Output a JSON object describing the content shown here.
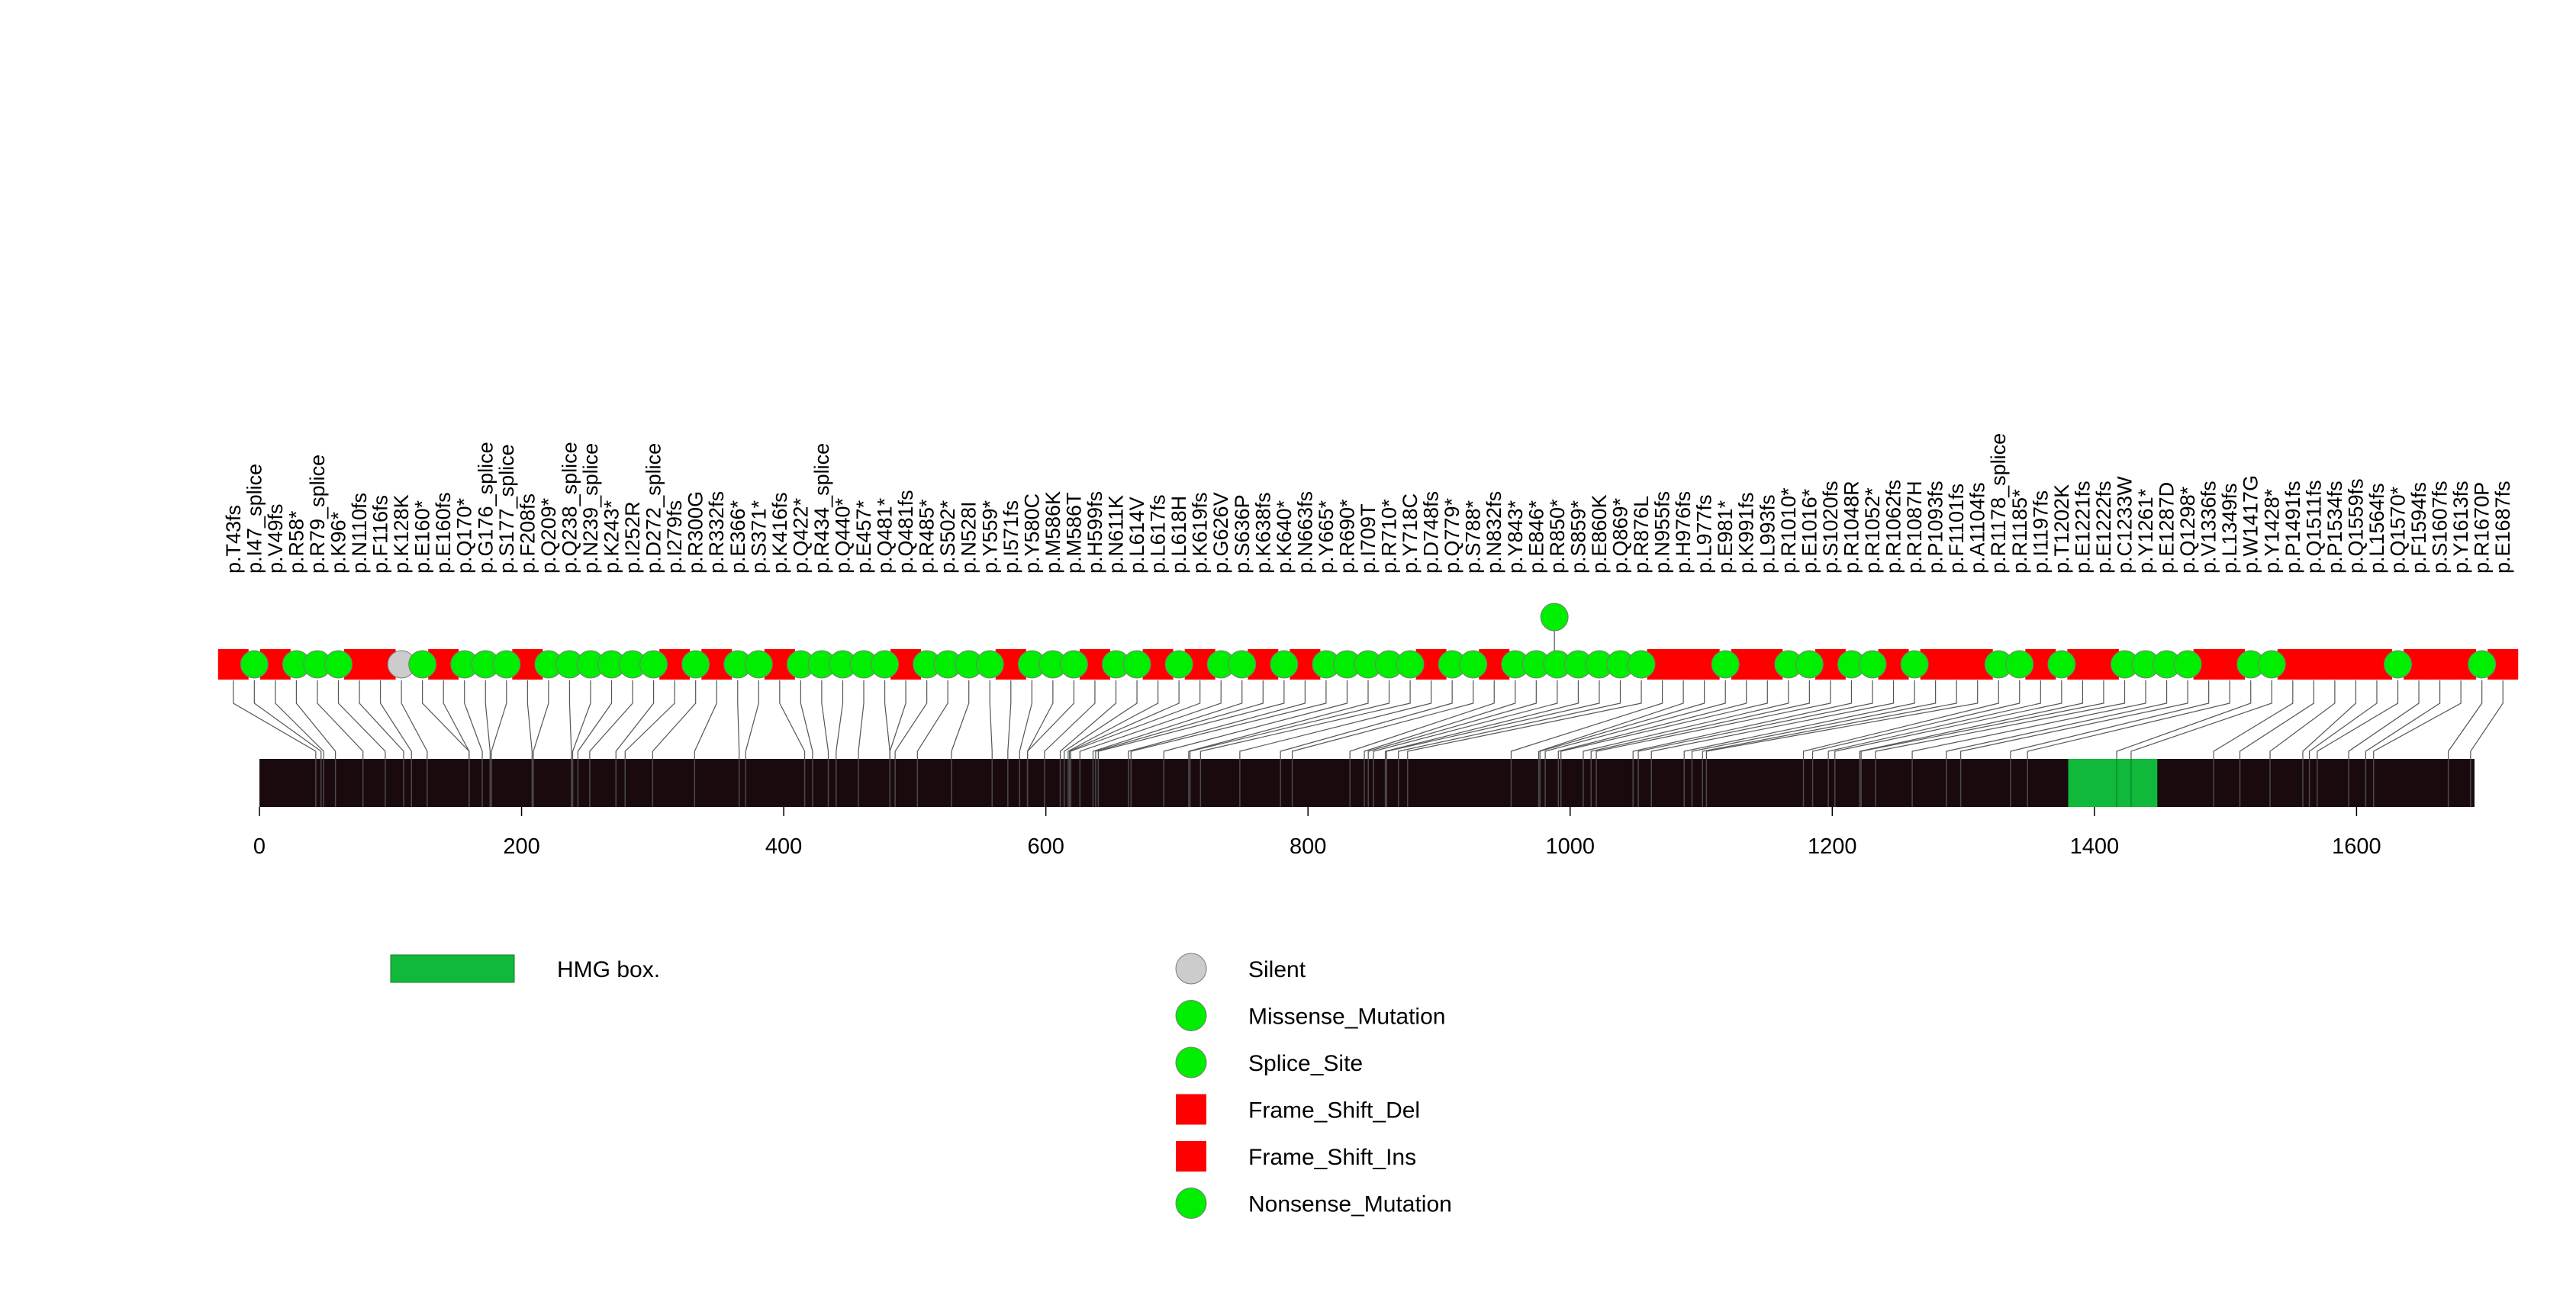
{
  "chart_data": {
    "type": "lollipop",
    "title": "",
    "xlabel": "",
    "ylabel": "",
    "protein_length": 1690,
    "xlim": [
      0,
      1690
    ],
    "x_ticks": [
      0,
      200,
      400,
      600,
      800,
      1000,
      1200,
      1400,
      1600
    ],
    "x_tick_labels": [
      "0",
      "200",
      "400",
      "600",
      "800",
      "1000",
      "1200",
      "1400",
      "1600"
    ],
    "domain_regions": [
      {
        "name": "HMG box.",
        "start": 1380,
        "end": 1448
      }
    ],
    "colors": {
      "backbone": "#1a0a0e",
      "domain": "#10b93a",
      "silent": "#cccccc",
      "missense": "#00ee00",
      "frame_shift": "#ff0000",
      "connector": "#555555"
    },
    "legend": {
      "domains": [
        {
          "label": "HMG box.",
          "color": "#10b93a"
        }
      ],
      "mutation_types": [
        {
          "label": "Silent",
          "shape": "circle",
          "color": "#cccccc"
        },
        {
          "label": "Missense_Mutation",
          "shape": "circle",
          "color": "#00ee00"
        },
        {
          "label": "Splice_Site",
          "shape": "circle",
          "color": "#00ee00"
        },
        {
          "label": "Frame_Shift_Del",
          "shape": "square",
          "color": "#ff0000"
        },
        {
          "label": "Frame_Shift_Ins",
          "shape": "square",
          "color": "#ff0000"
        },
        {
          "label": "Nonsense_Mutation",
          "shape": "circle",
          "color": "#00ee00"
        }
      ]
    },
    "mutations": [
      {
        "label": "p.T43fs",
        "pos": 43,
        "type": "Frame_Shift_Del"
      },
      {
        "label": "p.I47_splice",
        "pos": 47,
        "type": "Splice_Site"
      },
      {
        "label": "p.V49fs",
        "pos": 49,
        "type": "Frame_Shift_Del"
      },
      {
        "label": "p.R58*",
        "pos": 58,
        "type": "Nonsense_Mutation"
      },
      {
        "label": "p.R79_splice",
        "pos": 79,
        "type": "Splice_Site"
      },
      {
        "label": "p.K96*",
        "pos": 96,
        "type": "Nonsense_Mutation"
      },
      {
        "label": "p.N110fs",
        "pos": 110,
        "type": "Frame_Shift_Del"
      },
      {
        "label": "p.F116fs",
        "pos": 116,
        "type": "Frame_Shift_Del"
      },
      {
        "label": "p.K128K",
        "pos": 128,
        "type": "Silent"
      },
      {
        "label": "p.E160*",
        "pos": 160,
        "type": "Nonsense_Mutation"
      },
      {
        "label": "p.E160fs",
        "pos": 160,
        "type": "Frame_Shift_Del"
      },
      {
        "label": "p.Q170*",
        "pos": 170,
        "type": "Nonsense_Mutation"
      },
      {
        "label": "p.G176_splice",
        "pos": 176,
        "type": "Splice_Site"
      },
      {
        "label": "p.S177_splice",
        "pos": 177,
        "type": "Splice_Site"
      },
      {
        "label": "p.F208fs",
        "pos": 208,
        "type": "Frame_Shift_Del"
      },
      {
        "label": "p.Q209*",
        "pos": 209,
        "type": "Nonsense_Mutation"
      },
      {
        "label": "p.Q238_splice",
        "pos": 238,
        "type": "Splice_Site"
      },
      {
        "label": "p.N239_splice",
        "pos": 239,
        "type": "Splice_Site"
      },
      {
        "label": "p.K243*",
        "pos": 243,
        "type": "Nonsense_Mutation"
      },
      {
        "label": "p.I252R",
        "pos": 252,
        "type": "Missense_Mutation"
      },
      {
        "label": "p.D272_splice",
        "pos": 272,
        "type": "Splice_Site"
      },
      {
        "label": "p.I279fs",
        "pos": 279,
        "type": "Frame_Shift_Del"
      },
      {
        "label": "p.R300G",
        "pos": 300,
        "type": "Missense_Mutation"
      },
      {
        "label": "p.R332fs",
        "pos": 332,
        "type": "Frame_Shift_Del"
      },
      {
        "label": "p.E366*",
        "pos": 366,
        "type": "Nonsense_Mutation"
      },
      {
        "label": "p.S371*",
        "pos": 371,
        "type": "Nonsense_Mutation"
      },
      {
        "label": "p.K416fs",
        "pos": 416,
        "type": "Frame_Shift_Del"
      },
      {
        "label": "p.Q422*",
        "pos": 422,
        "type": "Nonsense_Mutation"
      },
      {
        "label": "p.R434_splice",
        "pos": 434,
        "type": "Splice_Site"
      },
      {
        "label": "p.Q440*",
        "pos": 440,
        "type": "Nonsense_Mutation"
      },
      {
        "label": "p.E457*",
        "pos": 457,
        "type": "Nonsense_Mutation"
      },
      {
        "label": "p.Q481*",
        "pos": 481,
        "type": "Nonsense_Mutation"
      },
      {
        "label": "p.Q481fs",
        "pos": 481,
        "type": "Frame_Shift_Del"
      },
      {
        "label": "p.R485*",
        "pos": 485,
        "type": "Nonsense_Mutation"
      },
      {
        "label": "p.S502*",
        "pos": 502,
        "type": "Nonsense_Mutation"
      },
      {
        "label": "p.N528I",
        "pos": 528,
        "type": "Missense_Mutation"
      },
      {
        "label": "p.Y559*",
        "pos": 559,
        "type": "Nonsense_Mutation"
      },
      {
        "label": "p.I571fs",
        "pos": 571,
        "type": "Frame_Shift_Del"
      },
      {
        "label": "p.Y580C",
        "pos": 580,
        "type": "Missense_Mutation"
      },
      {
        "label": "p.M586K",
        "pos": 586,
        "type": "Missense_Mutation"
      },
      {
        "label": "p.M586T",
        "pos": 586,
        "type": "Missense_Mutation"
      },
      {
        "label": "p.H599fs",
        "pos": 599,
        "type": "Frame_Shift_Del"
      },
      {
        "label": "p.N611K",
        "pos": 611,
        "type": "Missense_Mutation"
      },
      {
        "label": "p.L614V",
        "pos": 614,
        "type": "Missense_Mutation"
      },
      {
        "label": "p.L617fs",
        "pos": 617,
        "type": "Frame_Shift_Del"
      },
      {
        "label": "p.L618H",
        "pos": 618,
        "type": "Missense_Mutation"
      },
      {
        "label": "p.K619fs",
        "pos": 619,
        "type": "Frame_Shift_Del"
      },
      {
        "label": "p.G626V",
        "pos": 626,
        "type": "Missense_Mutation"
      },
      {
        "label": "p.S636P",
        "pos": 636,
        "type": "Missense_Mutation"
      },
      {
        "label": "p.K638fs",
        "pos": 638,
        "type": "Frame_Shift_Del"
      },
      {
        "label": "p.K640*",
        "pos": 640,
        "type": "Nonsense_Mutation"
      },
      {
        "label": "p.N663fs",
        "pos": 663,
        "type": "Frame_Shift_Del"
      },
      {
        "label": "p.Y665*",
        "pos": 665,
        "type": "Nonsense_Mutation"
      },
      {
        "label": "p.R690*",
        "pos": 690,
        "type": "Nonsense_Mutation"
      },
      {
        "label": "p.I709T",
        "pos": 709,
        "type": "Missense_Mutation"
      },
      {
        "label": "p.R710*",
        "pos": 710,
        "type": "Nonsense_Mutation"
      },
      {
        "label": "p.Y718C",
        "pos": 718,
        "type": "Missense_Mutation"
      },
      {
        "label": "p.D748fs",
        "pos": 748,
        "type": "Frame_Shift_Del"
      },
      {
        "label": "p.Q779*",
        "pos": 779,
        "type": "Nonsense_Mutation"
      },
      {
        "label": "p.S788*",
        "pos": 788,
        "type": "Nonsense_Mutation"
      },
      {
        "label": "p.N832fs",
        "pos": 832,
        "type": "Frame_Shift_Del"
      },
      {
        "label": "p.Y843*",
        "pos": 843,
        "type": "Nonsense_Mutation"
      },
      {
        "label": "p.E846*",
        "pos": 846,
        "type": "Nonsense_Mutation"
      },
      {
        "label": "p.R850*",
        "pos": 850,
        "type": "Nonsense_Mutation"
      },
      {
        "label": "p.S859*",
        "pos": 859,
        "type": "Nonsense_Mutation"
      },
      {
        "label": "p.E860K",
        "pos": 860,
        "type": "Missense_Mutation"
      },
      {
        "label": "p.Q869*",
        "pos": 869,
        "type": "Nonsense_Mutation"
      },
      {
        "label": "p.R876L",
        "pos": 876,
        "type": "Missense_Mutation"
      },
      {
        "label": "p.N955fs",
        "pos": 955,
        "type": "Frame_Shift_Del"
      },
      {
        "label": "p.H976fs",
        "pos": 976,
        "type": "Frame_Shift_Del"
      },
      {
        "label": "p.L977fs",
        "pos": 977,
        "type": "Frame_Shift_Del"
      },
      {
        "label": "p.E981*",
        "pos": 981,
        "type": "Nonsense_Mutation"
      },
      {
        "label": "p.K991fs",
        "pos": 991,
        "type": "Frame_Shift_Del"
      },
      {
        "label": "p.L993fs",
        "pos": 993,
        "type": "Frame_Shift_Del"
      },
      {
        "label": "p.R1010*",
        "pos": 1010,
        "type": "Nonsense_Mutation"
      },
      {
        "label": "p.E1016*",
        "pos": 1016,
        "type": "Nonsense_Mutation"
      },
      {
        "label": "p.S1020fs",
        "pos": 1020,
        "type": "Frame_Shift_Del"
      },
      {
        "label": "p.R1048R",
        "pos": 1048,
        "type": "Missense_Mutation"
      },
      {
        "label": "p.R1052*",
        "pos": 1052,
        "type": "Nonsense_Mutation"
      },
      {
        "label": "p.R1062fs",
        "pos": 1062,
        "type": "Frame_Shift_Del"
      },
      {
        "label": "p.R1087H",
        "pos": 1087,
        "type": "Missense_Mutation"
      },
      {
        "label": "p.P1093fs",
        "pos": 1093,
        "type": "Frame_Shift_Del"
      },
      {
        "label": "p.F1101fs",
        "pos": 1101,
        "type": "Frame_Shift_Del"
      },
      {
        "label": "p.A1104fs",
        "pos": 1104,
        "type": "Frame_Shift_Del"
      },
      {
        "label": "p.R1178_splice",
        "pos": 1178,
        "type": "Splice_Site"
      },
      {
        "label": "p.R1185*",
        "pos": 1185,
        "type": "Nonsense_Mutation"
      },
      {
        "label": "p.I1197fs",
        "pos": 1197,
        "type": "Frame_Shift_Del"
      },
      {
        "label": "p.T1202K",
        "pos": 1202,
        "type": "Missense_Mutation"
      },
      {
        "label": "p.E1221fs",
        "pos": 1221,
        "type": "Frame_Shift_Del"
      },
      {
        "label": "p.E1222fs",
        "pos": 1222,
        "type": "Frame_Shift_Del"
      },
      {
        "label": "p.C1233W",
        "pos": 1233,
        "type": "Missense_Mutation"
      },
      {
        "label": "p.Y1261*",
        "pos": 1261,
        "type": "Nonsense_Mutation"
      },
      {
        "label": "p.E1287D",
        "pos": 1287,
        "type": "Missense_Mutation"
      },
      {
        "label": "p.Q1298*",
        "pos": 1298,
        "type": "Nonsense_Mutation"
      },
      {
        "label": "p.V1336fs",
        "pos": 1336,
        "type": "Frame_Shift_Del"
      },
      {
        "label": "p.L1349fs",
        "pos": 1349,
        "type": "Frame_Shift_Del"
      },
      {
        "label": "p.W1417G",
        "pos": 1417,
        "type": "Missense_Mutation"
      },
      {
        "label": "p.Y1428*",
        "pos": 1428,
        "type": "Nonsense_Mutation"
      },
      {
        "label": "p.P1491fs",
        "pos": 1491,
        "type": "Frame_Shift_Del"
      },
      {
        "label": "p.Q1511fs",
        "pos": 1511,
        "type": "Frame_Shift_Del"
      },
      {
        "label": "p.P1534fs",
        "pos": 1534,
        "type": "Frame_Shift_Del"
      },
      {
        "label": "p.Q1559fs",
        "pos": 1559,
        "type": "Frame_Shift_Del"
      },
      {
        "label": "p.L1564fs",
        "pos": 1564,
        "type": "Frame_Shift_Del"
      },
      {
        "label": "p.Q1570*",
        "pos": 1570,
        "type": "Nonsense_Mutation"
      },
      {
        "label": "p.F1594fs",
        "pos": 1594,
        "type": "Frame_Shift_Del"
      },
      {
        "label": "p.S1607fs",
        "pos": 1607,
        "type": "Frame_Shift_Del"
      },
      {
        "label": "p.Y1613fs",
        "pos": 1613,
        "type": "Frame_Shift_Del"
      },
      {
        "label": "p.R1670P",
        "pos": 1670,
        "type": "Missense_Mutation"
      },
      {
        "label": "p.E1687fs",
        "pos": 1687,
        "type": "Frame_Shift_Del"
      }
    ],
    "stacked_markers": [
      {
        "pos": 988,
        "level": 2,
        "type": "Missense_Mutation"
      }
    ]
  }
}
